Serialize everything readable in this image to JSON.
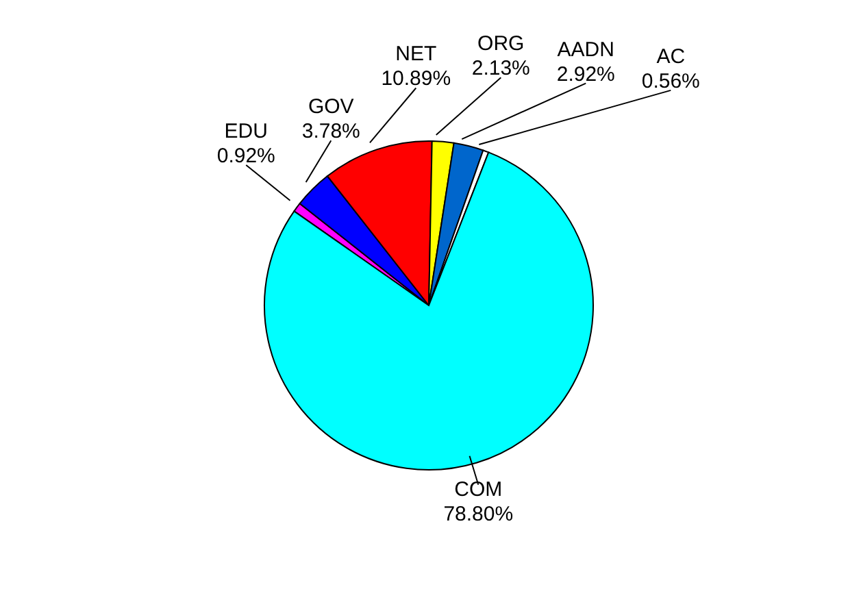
{
  "chart_data": {
    "type": "pie",
    "categories": [
      "EDU",
      "GOV",
      "NET",
      "ORG",
      "AADN",
      "AC",
      "COM"
    ],
    "values": [
      0.92,
      3.78,
      10.89,
      2.13,
      2.92,
      0.56,
      78.8
    ],
    "value_labels": [
      "0.92%",
      "3.78%",
      "10.89%",
      "2.13%",
      "2.92%",
      "0.56%",
      "78.80%"
    ],
    "colors": [
      "#ff00ff",
      "#0000ff",
      "#ff0000",
      "#ffff00",
      "#0066cc",
      "#ffffff",
      "#00ffff"
    ],
    "legend": false
  }
}
